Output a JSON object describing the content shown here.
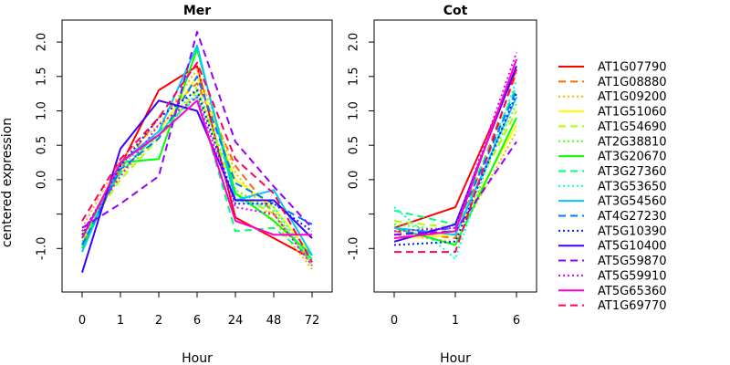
{
  "chart_data": {
    "type": "line",
    "ylabel": "centered expression",
    "ytick_labels": [
      "-1.0",
      "",
      "0.0",
      "0.5",
      "1.0",
      "1.5",
      "2.0"
    ],
    "ytick_values": [
      -1.0,
      -0.5,
      0.0,
      0.5,
      1.0,
      1.5,
      2.0
    ],
    "legend_position": "right",
    "series": [
      {
        "name": "AT1G07790",
        "color": "#ff0000",
        "dash": "solid"
      },
      {
        "name": "AT1G08880",
        "color": "#ff6a00",
        "dash": "dashed"
      },
      {
        "name": "AT1G09200",
        "color": "#ffb400",
        "dash": "dotted"
      },
      {
        "name": "AT1G51060",
        "color": "#ffff00",
        "dash": "solid"
      },
      {
        "name": "AT1G54690",
        "color": "#aaff00",
        "dash": "dashed"
      },
      {
        "name": "AT2G38810",
        "color": "#55ff00",
        "dash": "dotted"
      },
      {
        "name": "AT3G20670",
        "color": "#00ff00",
        "dash": "solid"
      },
      {
        "name": "AT3G27360",
        "color": "#00ff7a",
        "dash": "dashed"
      },
      {
        "name": "AT3G53650",
        "color": "#00ffd0",
        "dash": "dotted"
      },
      {
        "name": "AT3G54560",
        "color": "#00c8ff",
        "dash": "solid"
      },
      {
        "name": "AT4G27230",
        "color": "#0078ff",
        "dash": "dashed"
      },
      {
        "name": "AT5G10390",
        "color": "#0020ff",
        "dash": "dotted"
      },
      {
        "name": "AT5G10400",
        "color": "#3c00ff",
        "dash": "solid"
      },
      {
        "name": "AT5G59870",
        "color": "#9400ff",
        "dash": "dashed"
      },
      {
        "name": "AT5G59910",
        "color": "#e600ff",
        "dash": "dotted"
      },
      {
        "name": "AT5G65360",
        "color": "#ff00c8",
        "dash": "solid"
      },
      {
        "name": "AT1G69770",
        "color": "#ff0060",
        "dash": "dashed"
      }
    ],
    "panels": [
      {
        "title": "Mer",
        "xlabel": "Hour",
        "categories": [
          "0",
          "1",
          "2",
          "6",
          "24",
          "48",
          "72"
        ],
        "ylim": [
          -1.5,
          2.2
        ],
        "values": [
          [
            -0.95,
            0.2,
            1.3,
            1.65,
            -0.55,
            -0.85,
            -1.15
          ],
          [
            -0.85,
            0.15,
            0.9,
            1.4,
            0.2,
            -0.5,
            -1.2
          ],
          [
            -0.7,
            0.3,
            0.8,
            1.6,
            0.1,
            -0.6,
            -1.3
          ],
          [
            -0.9,
            0.1,
            0.7,
            1.5,
            0.0,
            -0.4,
            -1.1
          ],
          [
            -0.8,
            0.0,
            0.6,
            1.3,
            -0.2,
            -0.5,
            -1.2
          ],
          [
            -0.75,
            0.05,
            0.65,
            1.35,
            -0.15,
            -0.45,
            -1.25
          ],
          [
            -1.0,
            0.25,
            0.3,
            1.9,
            -0.2,
            -0.6,
            -1.1
          ],
          [
            -0.85,
            0.1,
            0.7,
            1.2,
            -0.75,
            -0.7,
            -1.15
          ],
          [
            -0.9,
            0.2,
            0.65,
            1.25,
            -0.3,
            -0.4,
            -1.2
          ],
          [
            -1.05,
            0.25,
            0.7,
            1.95,
            -0.3,
            -0.15,
            -1.1
          ],
          [
            -0.95,
            0.15,
            0.6,
            1.5,
            -0.05,
            -0.35,
            -0.65
          ],
          [
            -0.8,
            0.2,
            0.9,
            1.3,
            -0.35,
            -0.35,
            -0.75
          ],
          [
            -1.35,
            0.45,
            1.15,
            1.0,
            -0.3,
            -0.3,
            -0.85
          ],
          [
            -0.7,
            -0.35,
            0.05,
            2.15,
            0.55,
            -0.1,
            -0.7
          ],
          [
            -0.75,
            0.05,
            0.8,
            1.2,
            -0.4,
            -0.5,
            -1.25
          ],
          [
            -0.85,
            0.25,
            0.65,
            1.15,
            -0.6,
            -0.8,
            -0.8
          ],
          [
            -0.6,
            0.3,
            0.9,
            1.7,
            0.3,
            -0.2,
            -1.2
          ]
        ]
      },
      {
        "title": "Cot",
        "xlabel": "Hour",
        "categories": [
          "0",
          "1",
          "6"
        ],
        "ylim": [
          -1.5,
          2.2
        ],
        "values": [
          [
            -0.7,
            -0.4,
            1.6
          ],
          [
            -0.75,
            -0.85,
            1.55
          ],
          [
            -0.8,
            -0.9,
            0.7
          ],
          [
            -0.85,
            -0.8,
            0.8
          ],
          [
            -0.6,
            -0.7,
            1.0
          ],
          [
            -0.65,
            -0.75,
            1.1
          ],
          [
            -0.7,
            -0.95,
            0.9
          ],
          [
            -0.45,
            -0.65,
            1.35
          ],
          [
            -0.4,
            -1.15,
            1.45
          ],
          [
            -0.7,
            -0.8,
            1.2
          ],
          [
            -0.8,
            -0.7,
            1.3
          ],
          [
            -0.95,
            -0.9,
            1.25
          ],
          [
            -0.9,
            -0.65,
            1.65
          ],
          [
            -0.8,
            -0.75,
            0.55
          ],
          [
            -0.75,
            -0.7,
            1.85
          ],
          [
            -0.85,
            -0.75,
            1.75
          ],
          [
            -1.05,
            -1.05,
            1.6
          ]
        ]
      }
    ]
  }
}
